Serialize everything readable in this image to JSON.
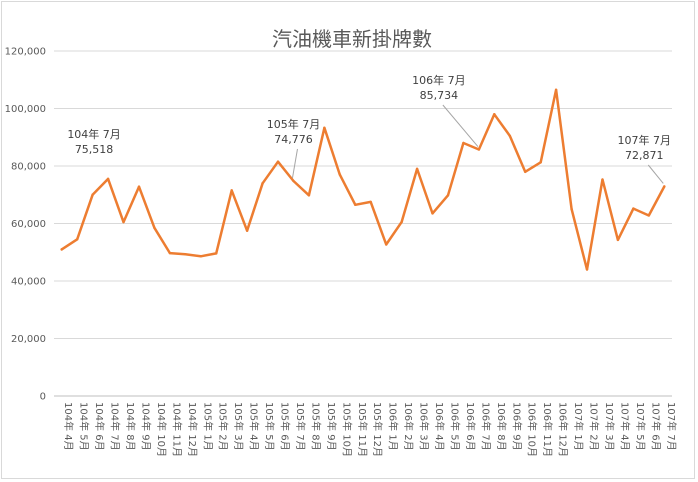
{
  "chart_data": {
    "type": "line",
    "title": "汽油機車新掛牌數",
    "xlabel": "",
    "ylabel": "",
    "ylim": [
      0,
      120000
    ],
    "yticks": [
      "0",
      "20,000",
      "40,000",
      "60,000",
      "80,000",
      "100,000",
      "120,000"
    ],
    "grid": true,
    "legend": "none",
    "line_color": "#ED7D31",
    "categories": [
      "104年 4月",
      "104年 5月",
      "104年 6月",
      "104年 7月",
      "104年 8月",
      "104年 9月",
      "104年 10月",
      "104年 11月",
      "104年 12月",
      "105年 1月",
      "105年 2月",
      "105年 3月",
      "105年 4月",
      "105年 5月",
      "105年 6月",
      "105年 7月",
      "105年 8月",
      "105年 9月",
      "105年 10月",
      "105年 11月",
      "105年 12月",
      "106年 1月",
      "106年 2月",
      "106年 3月",
      "106年 4月",
      "106年 5月",
      "106年 6月",
      "106年 7月",
      "106年 8月",
      "106年 9月",
      "106年 10月",
      "106年 11月",
      "106年 12月",
      "107年 1月",
      "107年 2月",
      "107年 3月",
      "107年 4月",
      "107年 5月",
      "107年 6月",
      "107年 7月"
    ],
    "values": [
      51000,
      54500,
      70000,
      75518,
      60500,
      72800,
      58500,
      49700,
      49300,
      48600,
      49600,
      71500,
      57500,
      74000,
      81500,
      74776,
      69800,
      93300,
      77000,
      66500,
      67500,
      52700,
      60500,
      79000,
      63500,
      69800,
      88000,
      85734,
      98000,
      90500,
      78000,
      81300,
      106500,
      65000,
      44000,
      75300,
      54300,
      65200,
      62800,
      72871
    ],
    "annotations": [
      {
        "index": 3,
        "month": "104年 7月",
        "value_text": "75,518"
      },
      {
        "index": 15,
        "month": "105年 7月",
        "value_text": "74,776"
      },
      {
        "index": 27,
        "month": "106年 7月",
        "value_text": "85,734"
      },
      {
        "index": 39,
        "month": "107年 7月",
        "value_text": "72,871"
      }
    ]
  }
}
